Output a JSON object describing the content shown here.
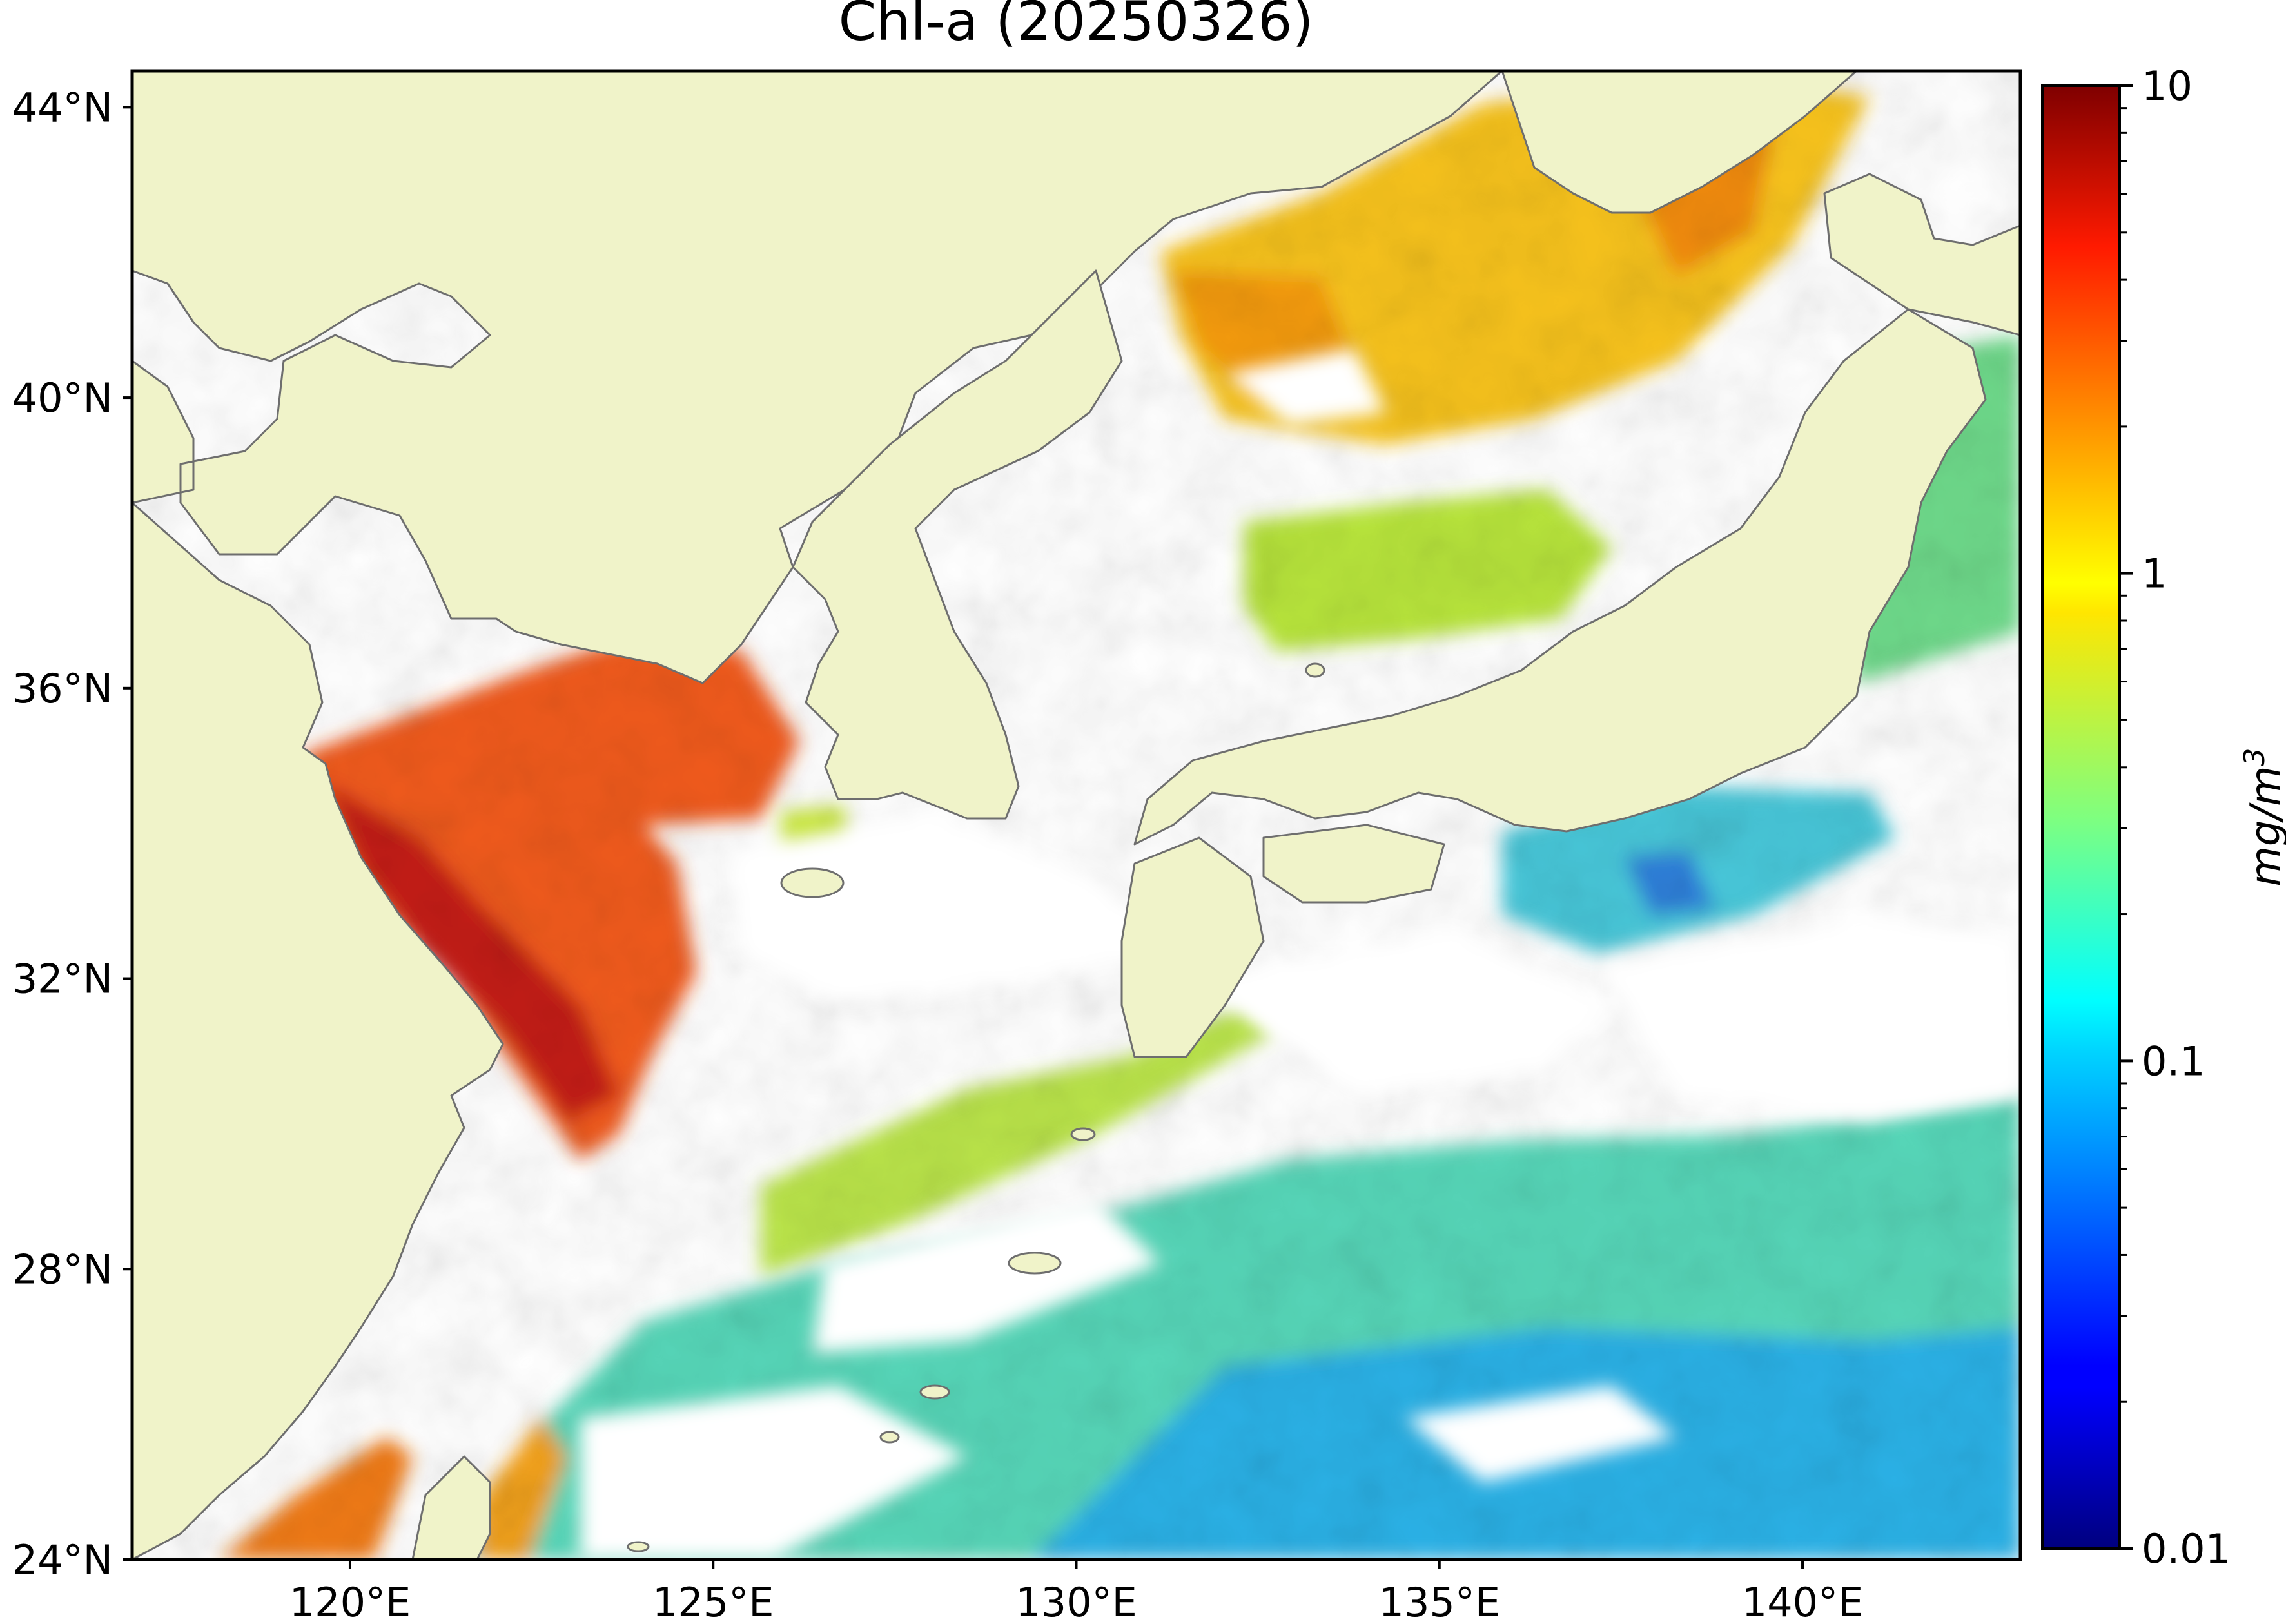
{
  "title": "Chl-a (20250326)",
  "map": {
    "lon_range": [
      117,
      143
    ],
    "lat_range": [
      24,
      44.5
    ],
    "land_color": "#f0f3c9",
    "coastline_color": "#6e6e6e",
    "no_data_color": "#ffffff",
    "lat_ticks": [
      {
        "value": 44,
        "label": "44°N"
      },
      {
        "value": 40,
        "label": "40°N"
      },
      {
        "value": 36,
        "label": "36°N"
      },
      {
        "value": 32,
        "label": "32°N"
      },
      {
        "value": 28,
        "label": "28°N"
      },
      {
        "value": 24,
        "label": "24°N"
      }
    ],
    "lon_ticks": [
      {
        "value": 120,
        "label": "120°E"
      },
      {
        "value": 125,
        "label": "125°E"
      },
      {
        "value": 130,
        "label": "130°E"
      },
      {
        "value": 135,
        "label": "135°E"
      },
      {
        "value": 140,
        "label": "140°E"
      }
    ],
    "regions": [
      {
        "name": "yellow-sea-east-china-sea-bloom",
        "level": "high"
      },
      {
        "name": "east-sea-north",
        "level": "medium-high"
      },
      {
        "name": "east-sea-central",
        "level": "medium"
      },
      {
        "name": "pacific-south-of-japan",
        "level": "low"
      },
      {
        "name": "kuroshio-subtropical-gyre",
        "level": "low"
      },
      {
        "name": "taiwan-strait",
        "level": "high"
      }
    ]
  },
  "colorbar": {
    "colormap": "jet",
    "scale": "log",
    "range": [
      0.01,
      10
    ],
    "ticks": [
      {
        "value": 10,
        "label": "10"
      },
      {
        "value": 1,
        "label": "1"
      },
      {
        "value": 0.1,
        "label": "0.1"
      },
      {
        "value": 0.01,
        "label": "0.01"
      }
    ],
    "unit_label": "mg/m",
    "unit_exponent": "3"
  }
}
